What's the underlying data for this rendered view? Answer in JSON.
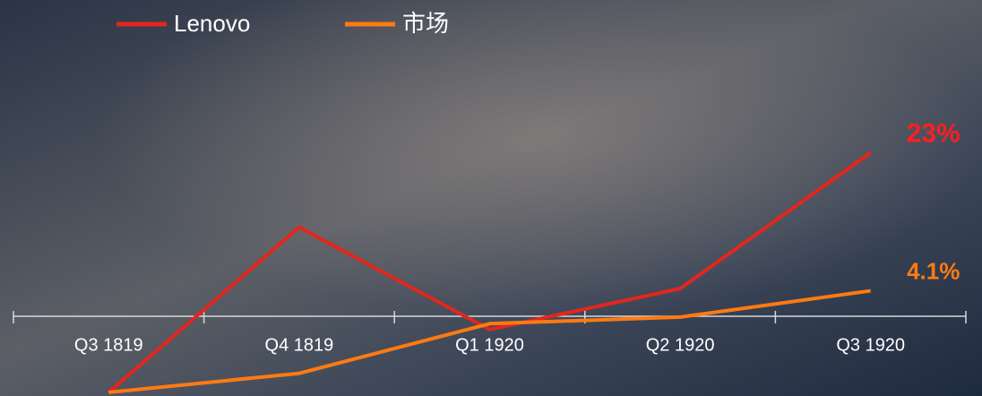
{
  "chart_data": {
    "type": "line",
    "categories": [
      "Q3 1819",
      "Q4 1819",
      "Q1 1920",
      "Q2 1920",
      "Q3 1920"
    ],
    "series": [
      {
        "name": "Lenovo",
        "color": "#e3261c",
        "values": [
          -9.8,
          12.8,
          -1.2,
          4.4,
          23
        ],
        "value_labels": [
          null,
          null,
          null,
          null,
          "23%"
        ],
        "label_color": "#ff1f1f"
      },
      {
        "name": "市场",
        "color": "#ff7a12",
        "values": [
          -9.8,
          -7.2,
          -0.4,
          0.5,
          4.1
        ],
        "value_labels": [
          null,
          null,
          null,
          null,
          "4.1%"
        ],
        "label_color": "#ff7a12"
      }
    ],
    "ylim": [
      -10.3,
      43.9
    ]
  }
}
